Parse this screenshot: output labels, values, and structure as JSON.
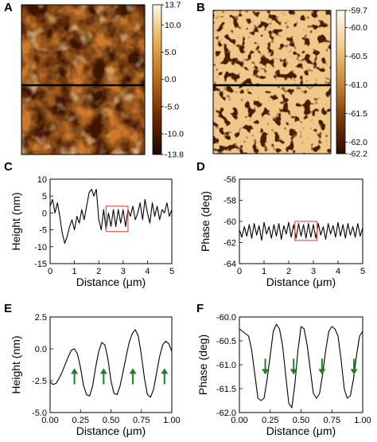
{
  "panels": [
    {
      "id": "A",
      "type": "image-map",
      "colorbar_ticks": [
        "13.7",
        "10.0",
        "5.0",
        "0.0",
        "-5.0",
        "-10.0",
        "-13.8"
      ],
      "colorbar_range": [
        -13.8,
        13.7
      ],
      "colormap": [
        "#1a0800",
        "#6e2a00",
        "#b86a18",
        "#e8ac50",
        "#fff7e6"
      ]
    },
    {
      "id": "B",
      "type": "image-map",
      "colorbar_ticks": [
        "-59.7",
        "-60.0",
        "-60.5",
        "-61.0",
        "-61.5",
        "-62.0",
        "-62.2"
      ],
      "colorbar_range": [
        -62.2,
        -59.7
      ],
      "colormap": [
        "#2a0d00",
        "#7a3a08",
        "#c98a3a",
        "#f0cc8e",
        "#fffaf0"
      ]
    }
  ],
  "chart_data": [
    {
      "panel": "C",
      "type": "line",
      "xlabel": "Distance (μm)",
      "ylabel": "Height (nm)",
      "xlim": [
        0,
        5
      ],
      "ylim": [
        -15,
        10
      ],
      "xticks": [
        "0",
        "1",
        "2",
        "3",
        "4",
        "5"
      ],
      "yticks": [
        "10",
        "5",
        "0",
        "-5",
        "-10",
        "-15"
      ],
      "highlight_box": {
        "x": [
          2.3,
          3.2
        ],
        "y": [
          -5.5,
          2
        ]
      },
      "x": [
        0,
        0.1,
        0.2,
        0.3,
        0.4,
        0.5,
        0.6,
        0.7,
        0.8,
        0.9,
        1.0,
        1.1,
        1.2,
        1.3,
        1.4,
        1.5,
        1.6,
        1.7,
        1.8,
        1.9,
        2.0,
        2.1,
        2.2,
        2.3,
        2.4,
        2.5,
        2.6,
        2.7,
        2.8,
        2.9,
        3.0,
        3.1,
        3.2,
        3.3,
        3.4,
        3.5,
        3.6,
        3.7,
        3.8,
        3.9,
        4.0,
        4.1,
        4.2,
        4.3,
        4.4,
        4.5,
        4.6,
        4.7,
        4.8,
        4.9,
        5.0
      ],
      "values": [
        2,
        4,
        0,
        3,
        -1,
        -6,
        -9,
        -7,
        -4,
        -2,
        -5,
        -1,
        -3,
        1,
        -2,
        2,
        6,
        7,
        5,
        7,
        -2,
        -5,
        1,
        -5,
        0,
        -4,
        1,
        -4,
        1,
        -3,
        1,
        -4,
        1,
        -1,
        2,
        -2,
        0,
        3,
        -2,
        4,
        0,
        -3,
        3,
        -1,
        2,
        -2,
        1,
        0,
        3,
        -1,
        1
      ]
    },
    {
      "panel": "D",
      "type": "line",
      "xlabel": "Distance (μm)",
      "ylabel": "Phase (deg)",
      "xlim": [
        0,
        5
      ],
      "ylim": [
        -64,
        -56
      ],
      "xticks": [
        "0",
        "1",
        "2",
        "3",
        "4",
        "5"
      ],
      "yticks": [
        "-56",
        "-58",
        "-60",
        "-62",
        "-64"
      ],
      "highlight_box": {
        "x": [
          2.25,
          3.15
        ],
        "y": [
          -61.8,
          -60
        ]
      },
      "x": [
        0,
        0.1,
        0.2,
        0.3,
        0.4,
        0.5,
        0.6,
        0.7,
        0.8,
        0.9,
        1.0,
        1.1,
        1.2,
        1.3,
        1.4,
        1.5,
        1.6,
        1.7,
        1.8,
        1.9,
        2.0,
        2.1,
        2.2,
        2.3,
        2.4,
        2.5,
        2.6,
        2.7,
        2.8,
        2.9,
        3.0,
        3.1,
        3.2,
        3.3,
        3.4,
        3.5,
        3.6,
        3.7,
        3.8,
        3.9,
        4.0,
        4.1,
        4.2,
        4.3,
        4.4,
        4.5,
        4.6,
        4.7,
        4.8,
        4.9,
        5.0
      ],
      "values": [
        -60.8,
        -61.5,
        -60.5,
        -61.4,
        -60.3,
        -61.6,
        -60.2,
        -61.3,
        -60.4,
        -61.8,
        -60.1,
        -61.2,
        -60.5,
        -61.6,
        -60.3,
        -61.4,
        -60.2,
        -61.7,
        -60.4,
        -61.2,
        -60.1,
        -61.5,
        -60.3,
        -61.6,
        -60.2,
        -61.4,
        -60.3,
        -61.6,
        -60.2,
        -61.5,
        -60.3,
        -61.6,
        -60.2,
        -61.3,
        -60.5,
        -61.7,
        -60.2,
        -61.2,
        -60.4,
        -61.5,
        -60.1,
        -61.4,
        -60.3,
        -61.6,
        -60.2,
        -61.3,
        -60.5,
        -61.5,
        -60.2,
        -61.4,
        -60.6
      ]
    },
    {
      "panel": "E",
      "type": "line",
      "xlabel": "Distance (μm)",
      "ylabel": "Height (nm)",
      "xlim": [
        0,
        1.0
      ],
      "ylim": [
        -5.0,
        2.5
      ],
      "xticks": [
        "0.00",
        "0.25",
        "0.50",
        "0.75",
        "1.00"
      ],
      "yticks": [
        "2.5",
        "0.0",
        "-2.5",
        "-5.0"
      ],
      "arrows": [
        {
          "x": 0.2,
          "direction": "up"
        },
        {
          "x": 0.44,
          "direction": "up"
        },
        {
          "x": 0.68,
          "direction": "up"
        },
        {
          "x": 0.94,
          "direction": "up"
        }
      ],
      "x": [
        0,
        0.025,
        0.05,
        0.075,
        0.1,
        0.125,
        0.15,
        0.175,
        0.2,
        0.225,
        0.25,
        0.275,
        0.3,
        0.325,
        0.35,
        0.375,
        0.4,
        0.425,
        0.45,
        0.475,
        0.5,
        0.525,
        0.55,
        0.575,
        0.6,
        0.625,
        0.65,
        0.675,
        0.7,
        0.725,
        0.75,
        0.775,
        0.8,
        0.825,
        0.85,
        0.875,
        0.9,
        0.925,
        0.95,
        0.975,
        1.0
      ],
      "values": [
        -2.6,
        -2.8,
        -2.7,
        -2.3,
        -1.8,
        -1.2,
        -0.6,
        -0.1,
        0.0,
        -0.4,
        -1.5,
        -2.9,
        -3.6,
        -3.7,
        -2.9,
        -1.4,
        -0.2,
        0.5,
        0.3,
        -0.8,
        -2.5,
        -3.5,
        -3.6,
        -2.9,
        -1.8,
        -0.6,
        0.5,
        1.2,
        1.5,
        1.0,
        -0.5,
        -2.3,
        -3.6,
        -3.8,
        -3.2,
        -1.9,
        -0.6,
        0.3,
        0.6,
        0.4,
        -0.2
      ]
    },
    {
      "panel": "F",
      "type": "line",
      "xlabel": "Distance (μm)",
      "ylabel": "Phase (deg)",
      "xlim": [
        0,
        1.0
      ],
      "ylim": [
        -62.0,
        -60.0
      ],
      "xticks": [
        "0.00",
        "0.25",
        "0.50",
        "0.75",
        "1.00"
      ],
      "yticks": [
        "-60.0",
        "-60.5",
        "-61.0",
        "-61.5",
        "-62.0"
      ],
      "arrows": [
        {
          "x": 0.21,
          "direction": "down"
        },
        {
          "x": 0.44,
          "direction": "down"
        },
        {
          "x": 0.67,
          "direction": "down"
        },
        {
          "x": 0.93,
          "direction": "down"
        }
      ],
      "x": [
        0,
        0.025,
        0.05,
        0.075,
        0.1,
        0.125,
        0.15,
        0.175,
        0.2,
        0.225,
        0.25,
        0.275,
        0.3,
        0.325,
        0.35,
        0.375,
        0.4,
        0.425,
        0.45,
        0.475,
        0.5,
        0.525,
        0.55,
        0.575,
        0.6,
        0.625,
        0.65,
        0.675,
        0.7,
        0.725,
        0.75,
        0.775,
        0.8,
        0.825,
        0.85,
        0.875,
        0.9,
        0.925,
        0.95,
        0.975,
        1.0
      ],
      "values": [
        -60.25,
        -60.3,
        -60.35,
        -60.4,
        -60.7,
        -61.2,
        -61.7,
        -61.75,
        -61.7,
        -61.3,
        -60.8,
        -60.3,
        -60.15,
        -60.25,
        -60.6,
        -61.2,
        -61.8,
        -61.9,
        -61.4,
        -60.7,
        -60.2,
        -60.25,
        -60.6,
        -61.1,
        -61.6,
        -61.7,
        -61.6,
        -61.2,
        -60.7,
        -60.3,
        -60.2,
        -60.25,
        -60.4,
        -60.9,
        -61.5,
        -61.7,
        -61.65,
        -61.3,
        -60.8,
        -60.4,
        -60.3
      ],
      "line_color": "#000000"
    }
  ],
  "colors": {
    "arrow": "#1e7d1e",
    "box": "#e8564a",
    "line": "#000000"
  }
}
